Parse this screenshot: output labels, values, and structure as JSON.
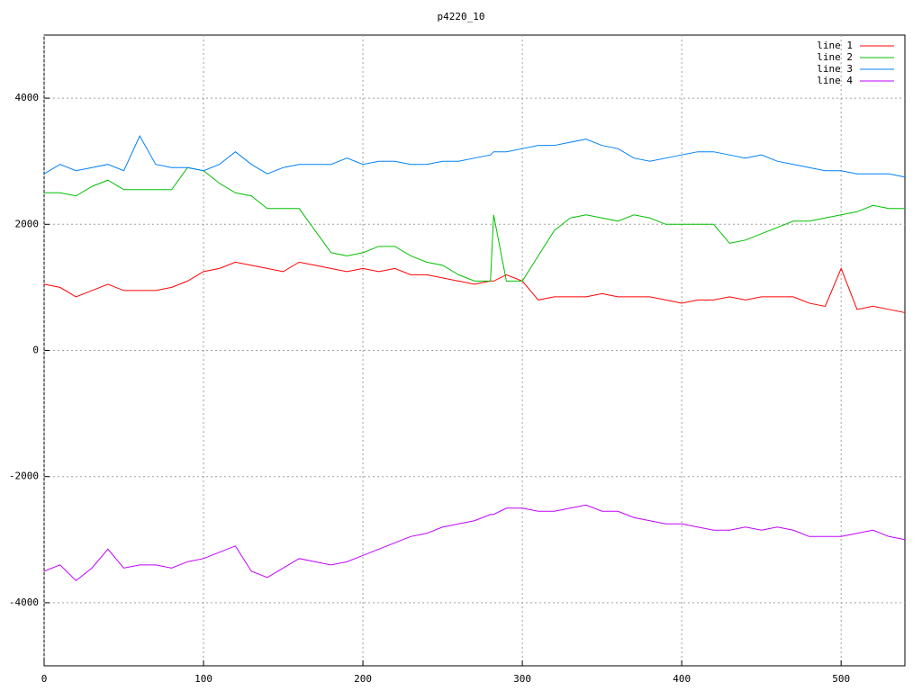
{
  "chart_data": {
    "type": "line",
    "title": "p4220_10",
    "x": [
      0,
      10,
      20,
      30,
      40,
      50,
      60,
      70,
      80,
      90,
      100,
      110,
      120,
      130,
      140,
      150,
      160,
      170,
      180,
      190,
      200,
      210,
      220,
      230,
      240,
      250,
      260,
      270,
      280,
      282,
      290,
      300,
      310,
      320,
      330,
      340,
      350,
      360,
      370,
      380,
      390,
      400,
      410,
      420,
      430,
      440,
      450,
      460,
      470,
      480,
      490,
      500,
      510,
      520,
      530,
      540
    ],
    "series": [
      {
        "name": "line 1",
        "color": "#ff0000",
        "values": [
          1050,
          1000,
          850,
          950,
          1050,
          950,
          950,
          950,
          1000,
          1100,
          1250,
          1300,
          1400,
          1350,
          1300,
          1250,
          1400,
          1350,
          1300,
          1250,
          1300,
          1250,
          1300,
          1200,
          1200,
          1150,
          1100,
          1050,
          1100,
          1100,
          1200,
          1100,
          800,
          850,
          850,
          850,
          900,
          850,
          850,
          850,
          800,
          750,
          800,
          800,
          850,
          800,
          850,
          850,
          850,
          750,
          700,
          1300,
          650,
          700,
          650,
          600
        ]
      },
      {
        "name": "line 2",
        "color": "#00c000",
        "values": [
          2500,
          2500,
          2450,
          2600,
          2700,
          2550,
          2550,
          2550,
          2550,
          2900,
          2850,
          2650,
          2500,
          2450,
          2250,
          2250,
          2250,
          1900,
          1550,
          1500,
          1550,
          1650,
          1650,
          1500,
          1400,
          1350,
          1200,
          1100,
          1100,
          2150,
          1100,
          1100,
          1500,
          1900,
          2100,
          2150,
          2100,
          2050,
          2150,
          2100,
          2000,
          2000,
          2000,
          2000,
          1700,
          1750,
          1850,
          1950,
          2050,
          2050,
          2100,
          2150,
          2200,
          2300,
          2250,
          2250
        ]
      },
      {
        "name": "line 3",
        "color": "#0080ff",
        "values": [
          2800,
          2950,
          2850,
          2900,
          2950,
          2850,
          3400,
          2950,
          2900,
          2900,
          2850,
          2950,
          3150,
          2950,
          2800,
          2900,
          2950,
          2950,
          2950,
          3050,
          2950,
          3000,
          3000,
          2950,
          2950,
          3000,
          3000,
          3050,
          3100,
          3150,
          3150,
          3200,
          3250,
          3250,
          3300,
          3350,
          3250,
          3200,
          3050,
          3000,
          3050,
          3100,
          3150,
          3150,
          3100,
          3050,
          3100,
          3000,
          2950,
          2900,
          2850,
          2850,
          2800,
          2800,
          2800,
          2750
        ]
      },
      {
        "name": "line 4",
        "color": "#c000ff",
        "values": [
          -3500,
          -3400,
          -3650,
          -3450,
          -3150,
          -3450,
          -3400,
          -3400,
          -3450,
          -3350,
          -3300,
          -3200,
          -3100,
          -3500,
          -3600,
          -3450,
          -3300,
          -3350,
          -3400,
          -3350,
          -3250,
          -3150,
          -3050,
          -2950,
          -2900,
          -2800,
          -2750,
          -2700,
          -2600,
          -2600,
          -2500,
          -2500,
          -2550,
          -2550,
          -2500,
          -2450,
          -2550,
          -2550,
          -2650,
          -2700,
          -2750,
          -2750,
          -2800,
          -2850,
          -2850,
          -2800,
          -2850,
          -2800,
          -2850,
          -2950,
          -2950,
          -2950,
          -2900,
          -2850,
          -2950,
          -3000
        ]
      }
    ],
    "xlim": [
      0,
      540
    ],
    "ylim": [
      -5000,
      5000
    ],
    "xticks": [
      0,
      100,
      200,
      300,
      400,
      500
    ],
    "yticks": [
      -4000,
      -2000,
      0,
      2000,
      4000
    ],
    "grid": true,
    "legend": "top-right"
  }
}
